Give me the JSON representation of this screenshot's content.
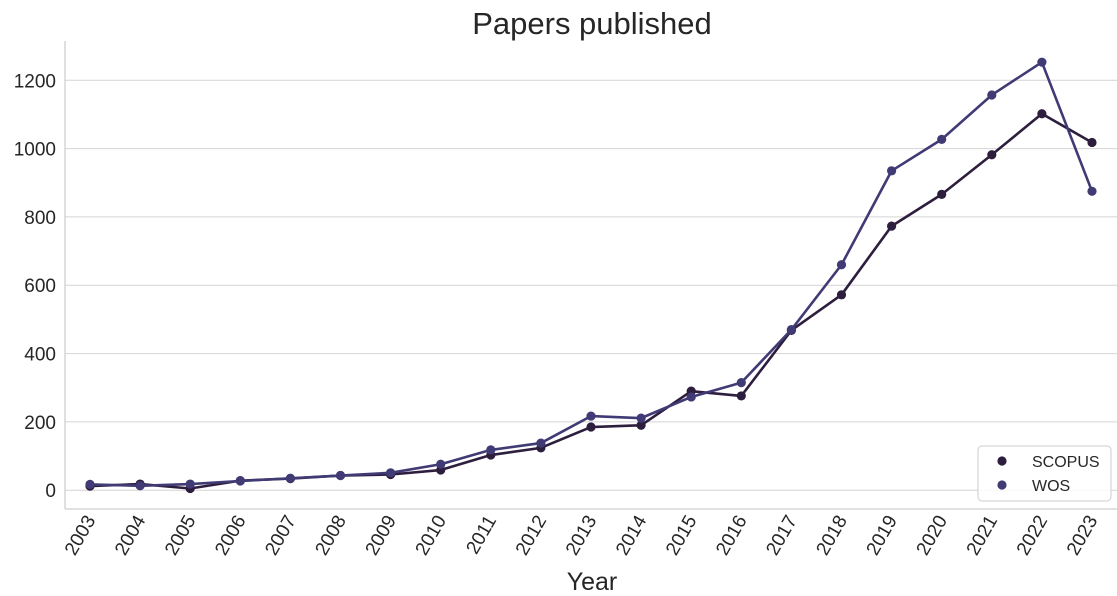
{
  "chart_data": {
    "type": "line",
    "title": "Papers published",
    "xlabel": "Year",
    "ylabel": "",
    "categories": [
      "2003",
      "2004",
      "2005",
      "2006",
      "2007",
      "2008",
      "2009",
      "2010",
      "2011",
      "2012",
      "2013",
      "2014",
      "2015",
      "2016",
      "2017",
      "2018",
      "2019",
      "2020",
      "2021",
      "2022",
      "2023"
    ],
    "yticks": [
      0,
      200,
      400,
      600,
      800,
      1000,
      1200
    ],
    "ylim": [
      -55,
      1315
    ],
    "grid": "horizontal",
    "legend_position": "bottom-right",
    "series": [
      {
        "name": "SCOPUS",
        "color": "#2d1e3e",
        "values": [
          12,
          18,
          5,
          28,
          34,
          43,
          46,
          59,
          103,
          124,
          185,
          190,
          290,
          276,
          468,
          572,
          773,
          866,
          982,
          1102,
          1018
        ]
      },
      {
        "name": "WOS",
        "color": "#403a75",
        "values": [
          17,
          13,
          18,
          27,
          35,
          43,
          51,
          76,
          118,
          138,
          217,
          211,
          273,
          315,
          470,
          660,
          935,
          1027,
          1157,
          1253,
          875
        ]
      }
    ]
  }
}
